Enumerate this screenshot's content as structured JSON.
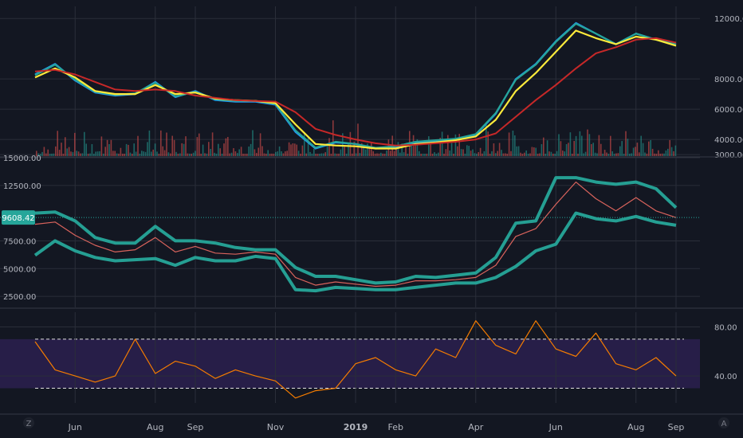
{
  "colors": {
    "background": "#131722",
    "grid": "#2a2e39",
    "separator": "#363a45",
    "axis_text": "#b2b5be",
    "ma_fast_blue": "#2196f3",
    "ma_fast_teal": "#26a69a",
    "ma_mid_yellow": "#ffeb3b",
    "ma_slow_red": "#c62828",
    "volume_up": "#26a69a",
    "volume_down": "#ef5350",
    "bollinger": "#26a69a",
    "candle_line": "#ef6c63",
    "price_label_bg": "#26a69a",
    "rsi_line": "#f57c00",
    "rsi_band": "#2a1f4d"
  },
  "time_axis": {
    "ticks": [
      {
        "label": "Jun",
        "t": 1.0,
        "bold": false
      },
      {
        "label": "Aug",
        "t": 3.0,
        "bold": false
      },
      {
        "label": "Sep",
        "t": 4.0,
        "bold": false
      },
      {
        "label": "Nov",
        "t": 6.0,
        "bold": false
      },
      {
        "label": "2019",
        "t": 8.0,
        "bold": true
      },
      {
        "label": "Feb",
        "t": 9.0,
        "bold": false
      },
      {
        "label": "Apr",
        "t": 11.0,
        "bold": false
      },
      {
        "label": "Jun",
        "t": 13.0,
        "bold": false
      },
      {
        "label": "Aug",
        "t": 15.0,
        "bold": false
      },
      {
        "label": "Sep",
        "t": 16.0,
        "bold": false
      }
    ],
    "left_icon": "Z",
    "right_icon": "A"
  },
  "chart_data": [
    {
      "type": "line",
      "panel": "price-moving-averages",
      "x_unit": "months since May 2018",
      "ylim": [
        2900,
        12800
      ],
      "yticks": [
        {
          "label": "12000.00",
          "v": 12000
        },
        {
          "label": "8000.00",
          "v": 8000
        },
        {
          "label": "6000.00",
          "v": 6000
        },
        {
          "label": "4000.00",
          "v": 4000
        },
        {
          "label": "3000.00",
          "v": 3000
        }
      ],
      "x": [
        0,
        0.5,
        1,
        1.5,
        2,
        2.5,
        3,
        3.5,
        4,
        4.5,
        5,
        5.5,
        6,
        6.5,
        7,
        7.5,
        8,
        8.5,
        9,
        9.5,
        10,
        10.5,
        11,
        11.5,
        12,
        12.5,
        13,
        13.5,
        14,
        14.5,
        15,
        15.5,
        16
      ],
      "series": [
        {
          "color": "#2196f3",
          "values": [
            8300,
            9000,
            7900,
            7100,
            6900,
            7000,
            7800,
            6800,
            7200,
            6600,
            6500,
            6500,
            6300,
            4500,
            3400,
            3800,
            3700,
            3400,
            3500,
            3800,
            3900,
            4000,
            4300,
            5700,
            8000,
            9000,
            10500,
            11700,
            11000,
            10300,
            11000,
            10600,
            10300
          ]
        },
        {
          "color": "#26a69a",
          "values": [
            8250,
            8950,
            7950,
            7150,
            6950,
            7050,
            7750,
            6850,
            7150,
            6650,
            6550,
            6550,
            6350,
            4600,
            3450,
            3850,
            3700,
            3450,
            3550,
            3850,
            3950,
            4050,
            4350,
            5750,
            7950,
            8950,
            10450,
            11650,
            11000,
            10300,
            11000,
            10600,
            10300
          ]
        },
        {
          "color": "#ffeb3b",
          "values": [
            8100,
            8700,
            8100,
            7200,
            7000,
            7000,
            7600,
            7000,
            7100,
            6700,
            6600,
            6550,
            6400,
            5000,
            3700,
            3600,
            3550,
            3400,
            3400,
            3700,
            3800,
            3950,
            4200,
            5300,
            7200,
            8400,
            9800,
            11200,
            10700,
            10300,
            10800,
            10600,
            10200
          ]
        },
        {
          "color": "#c62828",
          "values": [
            8500,
            8600,
            8300,
            7800,
            7300,
            7200,
            7300,
            7200,
            6900,
            6750,
            6600,
            6550,
            6500,
            5800,
            4700,
            4300,
            4000,
            3750,
            3600,
            3650,
            3750,
            3850,
            4000,
            4400,
            5500,
            6600,
            7600,
            8700,
            9700,
            10100,
            10600,
            10700,
            10400
          ]
        }
      ]
    },
    {
      "type": "line",
      "panel": "price-bollinger",
      "x_unit": "months since May 2018",
      "ylim": [
        1500,
        15000
      ],
      "yticks": [
        {
          "label": "15000.00",
          "v": 15000
        },
        {
          "label": "12500.00",
          "v": 12500
        },
        {
          "label": "7500.00",
          "v": 7500
        },
        {
          "label": "5000.00",
          "v": 5000
        },
        {
          "label": "2500.00",
          "v": 2500
        }
      ],
      "last_price_label": "9608.42",
      "last_price": 9608.42,
      "x": [
        0,
        0.5,
        1,
        1.5,
        2,
        2.5,
        3,
        3.5,
        4,
        4.5,
        5,
        5.5,
        6,
        6.5,
        7,
        7.5,
        8,
        8.5,
        9,
        9.5,
        10,
        10.5,
        11,
        11.5,
        12,
        12.5,
        13,
        13.5,
        14,
        14.5,
        15,
        15.5,
        16
      ],
      "series": [
        {
          "color": "#ef6c63",
          "values": [
            9000,
            9200,
            8000,
            7100,
            6500,
            6700,
            7800,
            6500,
            7000,
            6400,
            6300,
            6500,
            6300,
            4200,
            3500,
            3800,
            3600,
            3400,
            3500,
            3900,
            3900,
            4000,
            4200,
            5300,
            7900,
            8600,
            10800,
            12800,
            11300,
            10200,
            11400,
            10200,
            9600
          ]
        },
        {
          "color": "#26a69a",
          "values": [
            10000,
            10100,
            9300,
            7800,
            7300,
            7300,
            8800,
            7500,
            7500,
            7300,
            6900,
            6700,
            6700,
            5100,
            4300,
            4300,
            4000,
            3700,
            3800,
            4300,
            4200,
            4400,
            4600,
            6000,
            9100,
            9300,
            13200,
            13200,
            12800,
            12600,
            12800,
            12200,
            10500
          ]
        },
        {
          "color": "#26a69a",
          "values": [
            6200,
            7500,
            6600,
            6000,
            5700,
            5800,
            5900,
            5300,
            6000,
            5700,
            5700,
            6100,
            5900,
            3100,
            3000,
            3300,
            3200,
            3100,
            3100,
            3300,
            3500,
            3700,
            3700,
            4200,
            5200,
            6600,
            7200,
            10000,
            9500,
            9300,
            9700,
            9200,
            8900
          ]
        }
      ]
    },
    {
      "type": "line",
      "panel": "rsi",
      "x_unit": "months since May 2018",
      "ylim": [
        18,
        92
      ],
      "yticks": [
        {
          "label": "80.00",
          "v": 80
        },
        {
          "label": "40.00",
          "v": 40
        }
      ],
      "band": [
        30,
        70
      ],
      "x": [
        0,
        0.5,
        1,
        1.5,
        2,
        2.5,
        3,
        3.5,
        4,
        4.5,
        5,
        5.5,
        6,
        6.5,
        7,
        7.5,
        8,
        8.5,
        9,
        9.5,
        10,
        10.5,
        11,
        11.5,
        12,
        12.5,
        13,
        13.5,
        14,
        14.5,
        15,
        15.5,
        16
      ],
      "series": [
        {
          "color": "#f57c00",
          "values": [
            68,
            45,
            40,
            35,
            40,
            70,
            42,
            52,
            48,
            38,
            45,
            40,
            36,
            22,
            28,
            30,
            50,
            55,
            45,
            40,
            62,
            55,
            85,
            65,
            58,
            85,
            62,
            56,
            75,
            50,
            45,
            55,
            40
          ]
        }
      ]
    }
  ]
}
